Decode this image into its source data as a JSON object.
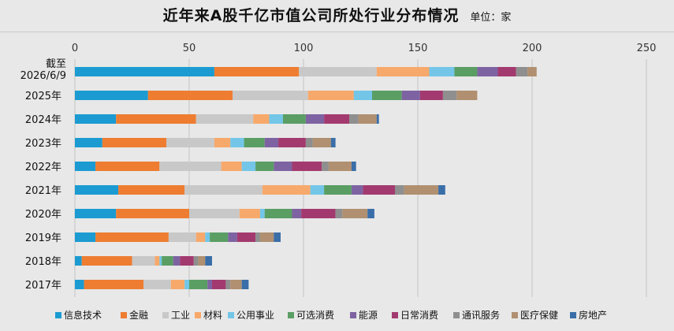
{
  "chart_data": {
    "type": "bar",
    "orientation": "horizontal",
    "stacked": true,
    "title": "近年来A股千亿市值公司所处行业分布情况",
    "unit_label": "单位：家",
    "xlim": [
      0,
      250
    ],
    "x_ticks": [
      0,
      50,
      100,
      150,
      200,
      250
    ],
    "grid": true,
    "legend_position": "bottom",
    "categories": [
      "截至\n2026/6/9",
      "2025年",
      "2024年",
      "2023年",
      "2022年",
      "2021年",
      "2020年",
      "2019年",
      "2018年",
      "2017年"
    ],
    "series": [
      {
        "name": "信息技术",
        "color": "#1b9bd1",
        "values": [
          61,
          32,
          18,
          12,
          9,
          19,
          18,
          9,
          3,
          4
        ]
      },
      {
        "name": "金融",
        "color": "#ee7d31",
        "values": [
          37,
          37,
          35,
          28,
          28,
          29,
          32,
          32,
          22,
          26
        ]
      },
      {
        "name": "工业",
        "color": "#c8c8c8",
        "values": [
          34,
          33,
          25,
          21,
          27,
          34,
          22,
          12,
          10,
          12
        ]
      },
      {
        "name": "材料",
        "color": "#f7a96b",
        "values": [
          23,
          20,
          7,
          7,
          9,
          21,
          9,
          4,
          2,
          6
        ]
      },
      {
        "name": "公用事业",
        "color": "#73c6e8",
        "values": [
          11,
          8,
          6,
          6,
          6,
          6,
          2,
          2,
          1,
          2
        ]
      },
      {
        "name": "可选消费",
        "color": "#5a9e64",
        "values": [
          10,
          13,
          10,
          9,
          8,
          12,
          12,
          8,
          5,
          8
        ]
      },
      {
        "name": "能源",
        "color": "#7e63a2",
        "values": [
          9,
          8,
          8,
          6,
          8,
          5,
          4,
          4,
          3,
          2
        ]
      },
      {
        "name": "日常消费",
        "color": "#a33a6f",
        "values": [
          8,
          10,
          11,
          12,
          13,
          14,
          15,
          8,
          6,
          6
        ]
      },
      {
        "name": "通讯服务",
        "color": "#8f8f8f",
        "values": [
          5,
          6,
          4,
          3,
          3,
          4,
          3,
          2,
          2,
          2
        ]
      },
      {
        "name": "医疗保健",
        "color": "#b09070",
        "values": [
          4,
          9,
          8,
          8,
          10,
          15,
          11,
          6,
          3,
          5
        ]
      },
      {
        "name": "房地产",
        "color": "#3a6ea8",
        "values": [
          0,
          0,
          1,
          2,
          2,
          3,
          3,
          3,
          3,
          3
        ]
      }
    ]
  }
}
